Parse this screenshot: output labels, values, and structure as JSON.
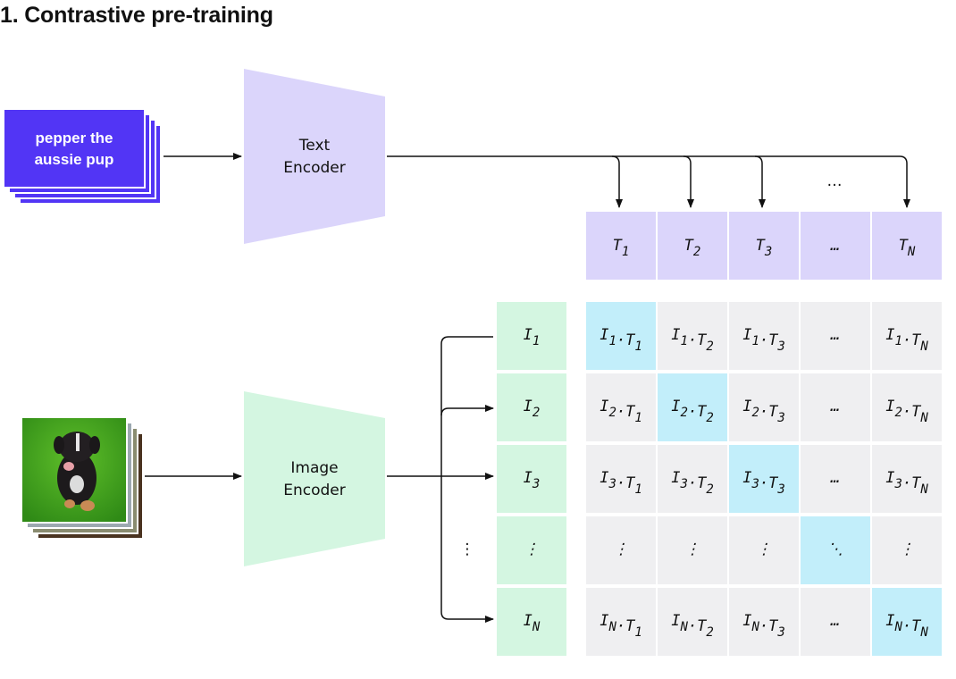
{
  "title": "1. Contrastive pre-training",
  "text_input": {
    "line1": "pepper the",
    "line2": "aussie pup"
  },
  "image_input": {
    "description_icon": "puppy-photo-stack"
  },
  "text_encoder": {
    "line1": "Text",
    "line2": "Encoder"
  },
  "image_encoder": {
    "line1": "Image",
    "line2": "Encoder"
  },
  "text_embeddings": [
    "T1",
    "T2",
    "T3",
    "…",
    "TN"
  ],
  "text_ellipsis": "…",
  "image_embeddings": [
    "I1",
    "I2",
    "I3",
    "⋮",
    "IN"
  ],
  "image_ellipsis": "⋮",
  "matrix": [
    [
      "I1·T1",
      "I1·T2",
      "I1·T3",
      "…",
      "I1·TN"
    ],
    [
      "I2·T1",
      "I2·T2",
      "I2·T3",
      "…",
      "I2·TN"
    ],
    [
      "I3·T1",
      "I3·T2",
      "I3·T3",
      "…",
      "I3·TN"
    ],
    [
      "⋮",
      "⋮",
      "⋮",
      "⋱",
      "⋮"
    ],
    [
      "IN·T1",
      "IN·T2",
      "IN·T3",
      "…",
      "IN·TN"
    ]
  ],
  "colors": {
    "text_card": "#5235f5",
    "text_encoder": "#dbd5fb",
    "image_encoder": "#d4f6e1",
    "text_embedding": "#dbd5fb",
    "image_embedding": "#d4f6e1",
    "matrix_cell": "#efeff1",
    "matrix_diagonal": "#c2eefa",
    "line": "#111111"
  }
}
